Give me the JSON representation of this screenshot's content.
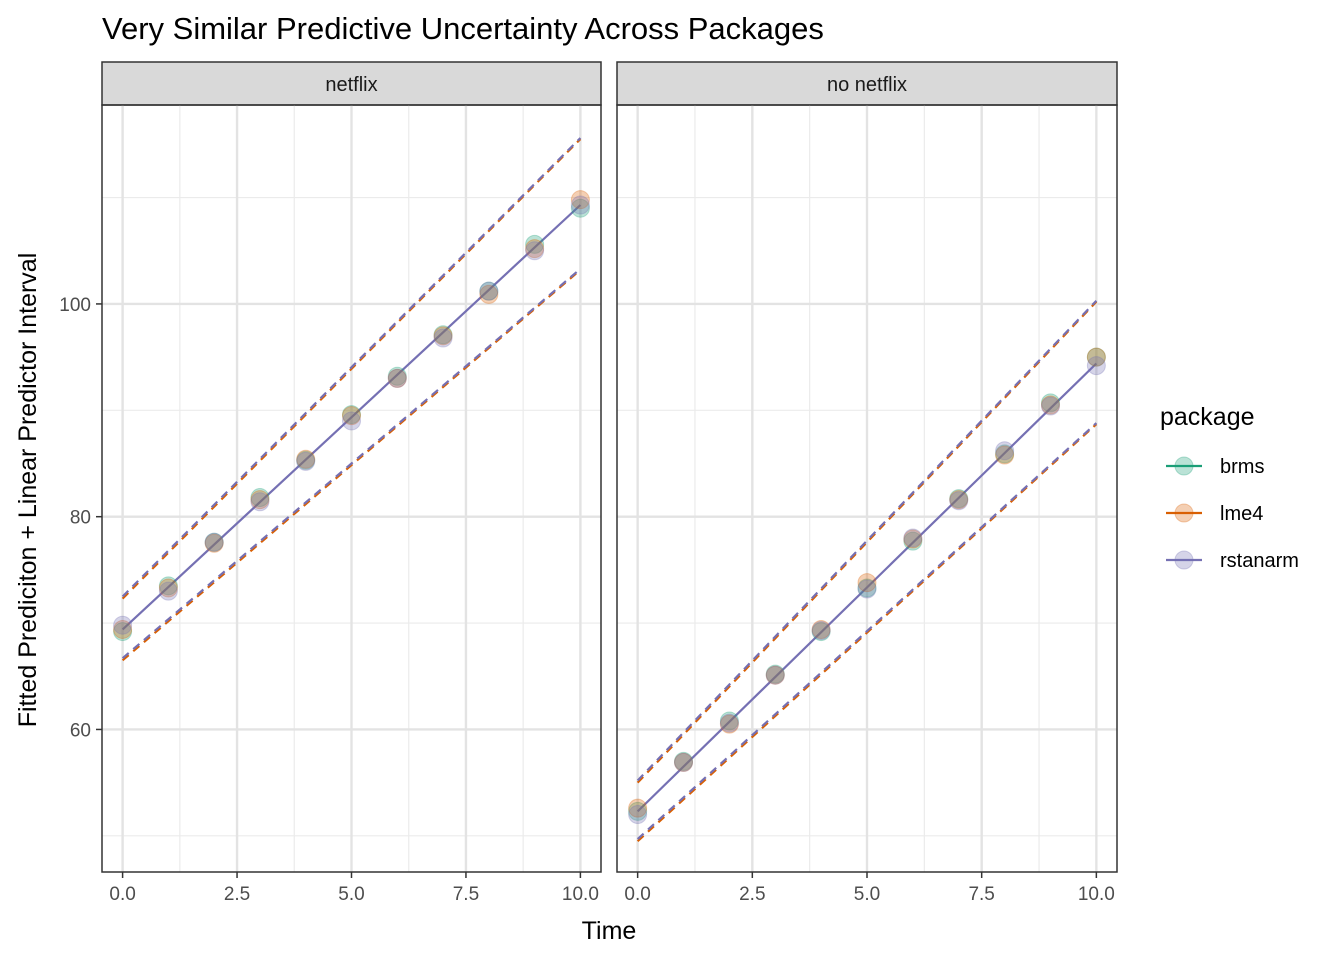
{
  "chart_data": {
    "type": "scatter",
    "title": "Very Similar Predictive Uncertainty Across Packages",
    "xlabel": "Time",
    "ylabel": "Fitted Prediciton + Linear Predictor Interval",
    "xlim": [
      -0.45,
      10.45
    ],
    "ylim": [
      46.6,
      118.7
    ],
    "x_ticks": [
      0,
      2.5,
      5,
      7.5,
      10
    ],
    "x_tick_labels": [
      "0.0",
      "2.5",
      "5.0",
      "7.5",
      "10.0"
    ],
    "y_ticks": [
      60,
      80,
      100
    ],
    "y_tick_labels": [
      "60",
      "80",
      "100"
    ],
    "grid": true,
    "legend": {
      "title": "package",
      "position": "right",
      "entries": [
        {
          "name": "brms",
          "color": "#1B9E77"
        },
        {
          "name": "lme4",
          "color": "#D95F02"
        },
        {
          "name": "rstanarm",
          "color": "#7570B3"
        }
      ]
    },
    "panels": [
      {
        "strip": "netflix",
        "x": [
          0,
          1,
          2,
          3,
          4,
          5,
          6,
          7,
          8,
          9,
          10
        ],
        "series": [
          {
            "name": "brms",
            "points": [
              69.2,
              73.5,
              77.6,
              81.8,
              85.3,
              89.6,
              93.2,
              97.1,
              101.2,
              105.6,
              109.0
            ]
          },
          {
            "name": "lme4",
            "points": [
              69.4,
              73.3,
              77.5,
              81.6,
              85.4,
              89.5,
              93.0,
              97.0,
              100.9,
              105.2,
              109.8
            ]
          },
          {
            "name": "rstanarm",
            "points": [
              69.8,
              73.0,
              77.6,
              81.4,
              85.2,
              89.0,
              93.0,
              96.8,
              101.2,
              105.0,
              109.3
            ]
          }
        ],
        "fit": {
          "start": 69.4,
          "end": 109.3
        },
        "upper": {
          "start": 72.5,
          "end": 115.6
        },
        "lower": {
          "start": 66.7,
          "end": 103.3
        }
      },
      {
        "strip": "no netflix",
        "x": [
          0,
          1,
          2,
          3,
          4,
          5,
          6,
          7,
          8,
          9,
          10
        ],
        "series": [
          {
            "name": "brms",
            "points": [
              52.3,
              57.0,
              60.8,
              65.2,
              69.2,
              73.3,
              77.7,
              81.7,
              85.9,
              90.7,
              95.0
            ]
          },
          {
            "name": "lme4",
            "points": [
              52.6,
              56.9,
              60.5,
              65.1,
              69.4,
              73.8,
              77.9,
              81.6,
              85.8,
              90.5,
              95.0
            ]
          },
          {
            "name": "rstanarm",
            "points": [
              52.0,
              56.9,
              60.6,
              65.1,
              69.3,
              73.2,
              78.0,
              81.5,
              86.2,
              90.4,
              94.2
            ]
          }
        ],
        "fit": {
          "start": 52.3,
          "end": 94.4
        },
        "upper": {
          "start": 55.2,
          "end": 100.3
        },
        "lower": {
          "start": 49.7,
          "end": 88.8
        }
      }
    ]
  }
}
